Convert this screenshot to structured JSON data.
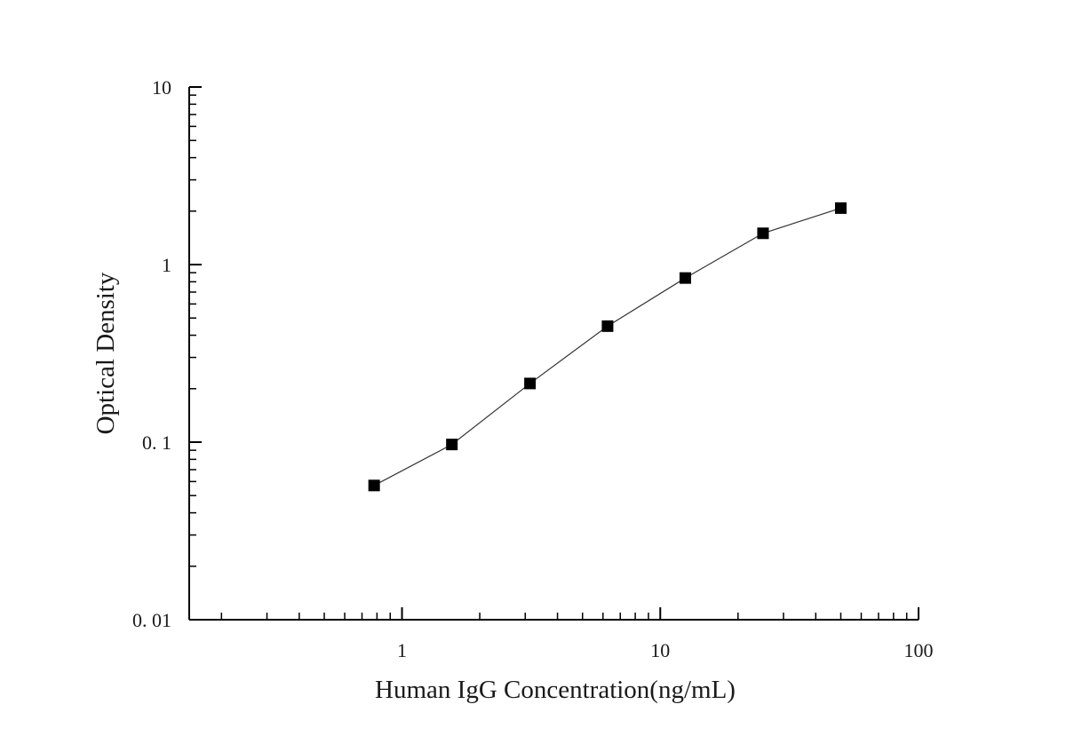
{
  "chart_data": {
    "type": "line",
    "title": "",
    "xlabel": "Human IgG Concentration(ng/mL)",
    "ylabel": "Optical Density",
    "x_scale": "log",
    "y_scale": "log",
    "xlim": [
      0.15,
      100
    ],
    "ylim": [
      0.01,
      10
    ],
    "x_ticks": [
      {
        "value": 1,
        "label": "1"
      },
      {
        "value": 10,
        "label": "10"
      },
      {
        "value": 100,
        "label": "100"
      }
    ],
    "y_ticks": [
      {
        "value": 0.01,
        "label": "0. 01"
      },
      {
        "value": 0.1,
        "label": "0. 1"
      },
      {
        "value": 1,
        "label": "1"
      },
      {
        "value": 10,
        "label": "10"
      }
    ],
    "grid": false,
    "legend": "none",
    "marker": "square",
    "series": [
      {
        "x": [
          0.78,
          1.56,
          3.13,
          6.25,
          12.5,
          25,
          50
        ],
        "y": [
          0.057,
          0.097,
          0.214,
          0.45,
          0.84,
          1.5,
          2.08
        ]
      }
    ]
  }
}
